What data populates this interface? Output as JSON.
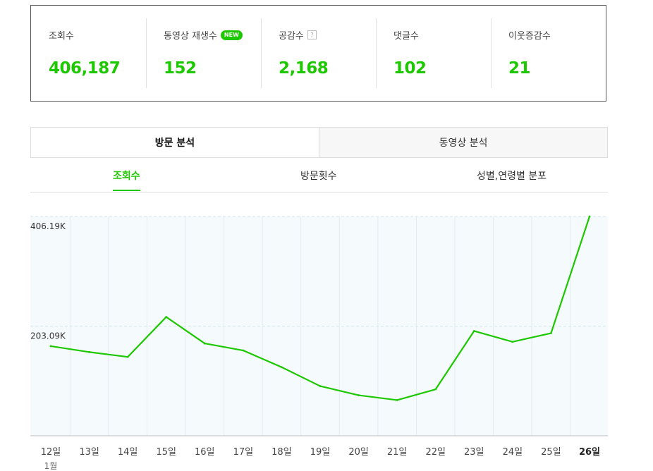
{
  "stats": [
    {
      "label": "조회수",
      "value": "406,187"
    },
    {
      "label": "동영상 재생수",
      "badge": "NEW",
      "value": "152"
    },
    {
      "label": "공감수",
      "help": "?",
      "value": "2,168"
    },
    {
      "label": "댓글수",
      "value": "102"
    },
    {
      "label": "이웃증감수",
      "value": "21"
    }
  ],
  "main_tabs": [
    "방문 분석",
    "동영상 분석"
  ],
  "sub_tabs": [
    "조회수",
    "방문횟수",
    "성별,연령별 분포"
  ],
  "accent_color": "#1ec800",
  "chart_data": {
    "type": "line",
    "x": [
      "12일",
      "13일",
      "14일",
      "15일",
      "16일",
      "17일",
      "18일",
      "19일",
      "20일",
      "21일",
      "22일",
      "23일",
      "24일",
      "25일",
      "26일"
    ],
    "month_label": "1월",
    "highlight": "26일",
    "y_tick_labels": [
      "406.19K",
      "203.09K"
    ],
    "y_ticks": [
      406190,
      203090
    ],
    "ylim": [
      0,
      406190
    ],
    "grid": true,
    "series": [
      {
        "values": [
          166000,
          155000,
          146000,
          220000,
          171000,
          158000,
          127000,
          92000,
          75000,
          66000,
          86000,
          194000,
          174000,
          190000,
          406187
        ]
      }
    ]
  }
}
